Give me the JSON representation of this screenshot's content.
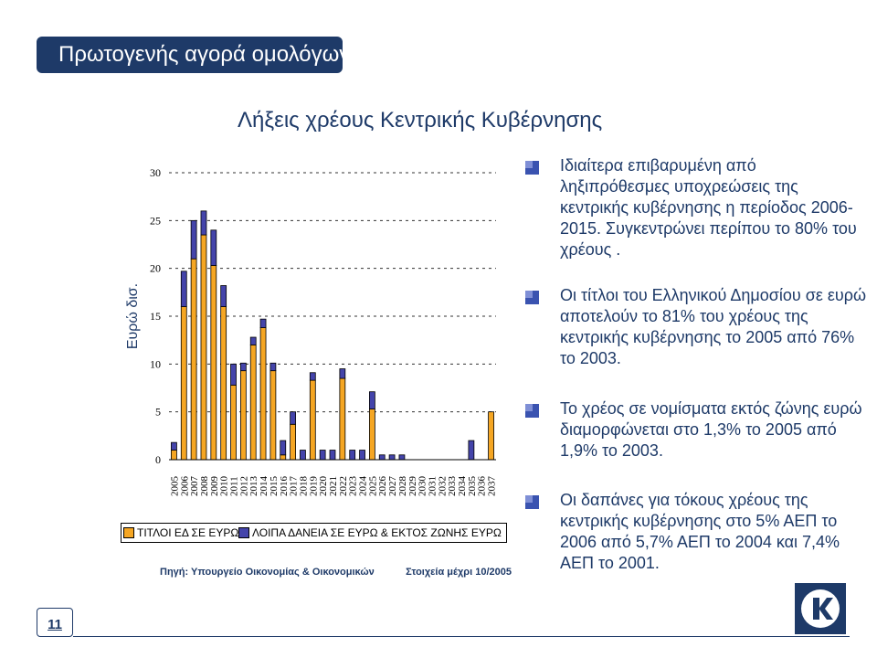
{
  "header": {
    "title": "Πρωτογενής αγορά ομολόγων"
  },
  "chart_data": {
    "type": "bar",
    "stacked": true,
    "title": "Λήξεις χρέους Κεντρικής Κυβέρνησης",
    "ylabel": "Ευρώ δισ.",
    "xlabel": "",
    "ylim": [
      0,
      30
    ],
    "yticks": [
      "0",
      "5",
      "10",
      "15",
      "20",
      "25",
      "30"
    ],
    "grid": true,
    "legend_position": "bottom",
    "categories": [
      "2005",
      "2006",
      "2007",
      "2008",
      "2009",
      "2010",
      "2011",
      "2012",
      "2013",
      "2014",
      "2015",
      "2016",
      "2017",
      "2018",
      "2019",
      "2020",
      "2021",
      "2022",
      "2023",
      "2024",
      "2025",
      "2026",
      "2027",
      "2028",
      "2029",
      "2030",
      "2031",
      "2032",
      "2033",
      "2034",
      "2035",
      "2036",
      "2037"
    ],
    "series": [
      {
        "name": "ΤΙΤΛΟΙ ΕΔ ΣΕ ΕΥΡΩ",
        "color": "#f5a623",
        "values": [
          1,
          16,
          21,
          23.5,
          20.3,
          16,
          7.8,
          9.3,
          12,
          13.8,
          9.3,
          0.5,
          3.7,
          0,
          8.3,
          0,
          0,
          8.5,
          0,
          0,
          5.3,
          0,
          0,
          0,
          0,
          0,
          0,
          0,
          0,
          0,
          0,
          0,
          5
        ]
      },
      {
        "name": "ΛΟΙΠΑ ΔΑΝΕΙΑ ΣΕ ΕΥΡΩ & ΕΚΤΟΣ ΖΩΝΗΣ ΕΥΡΩ",
        "color": "#4444aa",
        "values": [
          0.8,
          3.7,
          4,
          2.5,
          3.7,
          2.2,
          2.2,
          0.8,
          0.8,
          0.9,
          0.8,
          1.5,
          1.3,
          1,
          0.8,
          1,
          1,
          1,
          1,
          1,
          1.8,
          0.5,
          0.5,
          0.5,
          0,
          0,
          0,
          0,
          0,
          0,
          2,
          0,
          0
        ]
      }
    ]
  },
  "bullets": [
    "Ιδιαίτερα επιβαρυμένη από ληξιπρόθεσμες υποχρεώσεις της κεντρικής κυβέρνησης η περίοδος 2006-2015. Συγκεντρώνει περίπου το 80% του χρέους .",
    "Οι τίτλοι του Ελληνικού Δημοσίου σε ευρώ αποτελούν το 81% του χρέους της κεντρικής κυβέρνησης το 2005 από 76% το 2003.",
    "Το χρέος σε νομίσματα εκτός ζώνης ευρώ διαμορφώνεται στο 1,3% το 2005 από 1,9% το 2003.",
    "Οι δαπάνες για τόκους χρέους της κεντρικής κυβέρνησης στο 5% ΑΕΠ το 2006 από 5,7% ΑΕΠ το 2004 και 7,4% ΑΕΠ το 2001."
  ],
  "source": {
    "left": "Πηγή: Υπουργείο Οικονομίας & Οικονομικών",
    "right": "Στοιχεία μέχρι 10/2005"
  },
  "footer": {
    "page_number": "11",
    "logo_icon": "alpha-bank-logo-icon"
  },
  "colors": {
    "accent": "#1e3a68",
    "bullet": "#3a53b0"
  }
}
